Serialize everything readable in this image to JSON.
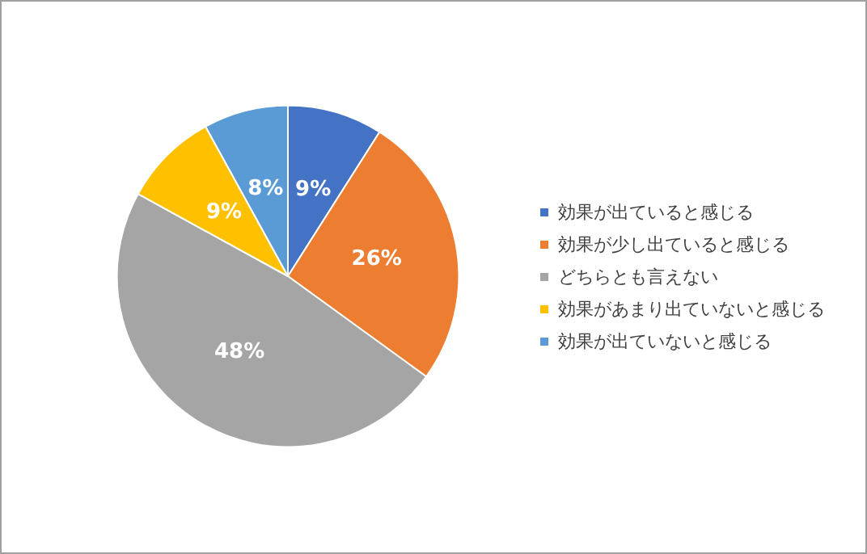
{
  "chart_data": {
    "type": "pie",
    "categories": [
      "効果が出ていると感じる",
      "効果が少し出ていると感じる",
      "どちらとも言えない",
      "効果があまり出ていないと感じる",
      "効果が出ていないと感じる"
    ],
    "values": [
      9,
      26,
      48,
      9,
      8
    ],
    "colors": [
      "#4472c4",
      "#ed7d31",
      "#a5a5a5",
      "#ffc000",
      "#5b9bd5"
    ],
    "value_labels": [
      "9%",
      "26%",
      "48%",
      "9%",
      "8%"
    ],
    "legend": "right"
  }
}
